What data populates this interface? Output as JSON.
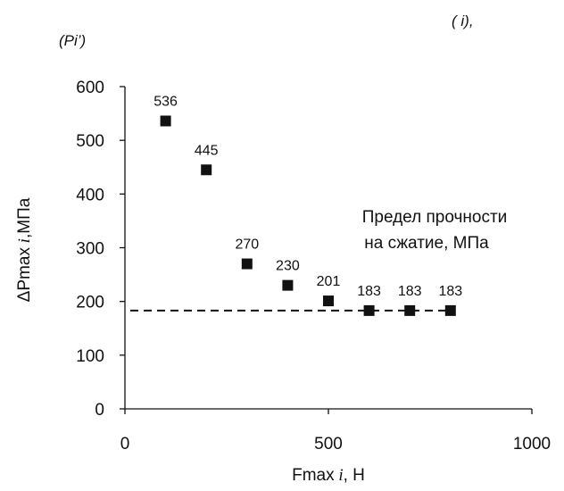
{
  "header_notes": {
    "right": "( i),",
    "left": "(Pi’)"
  },
  "chart_data": {
    "type": "scatter",
    "xlabel": "Fmax",
    "xlabel_sub": "i",
    "xlabel_unit": ", Н",
    "ylabel": "ΔPmax",
    "ylabel_sub": "i",
    "ylabel_unit": ",МПа",
    "xlim": [
      0,
      1000
    ],
    "ylim": [
      0,
      600
    ],
    "x_ticks": [
      0,
      500,
      1000
    ],
    "y_ticks": [
      0,
      100,
      200,
      300,
      400,
      500,
      600
    ],
    "grid": false,
    "marker": "square",
    "series": [
      {
        "points": [
          {
            "x": 100,
            "y": 536,
            "label": "536"
          },
          {
            "x": 200,
            "y": 445,
            "label": "445"
          },
          {
            "x": 300,
            "y": 270,
            "label": "270"
          },
          {
            "x": 400,
            "y": 230,
            "label": "230"
          },
          {
            "x": 500,
            "y": 201,
            "label": "201"
          },
          {
            "x": 600,
            "y": 183,
            "label": "183"
          },
          {
            "x": 700,
            "y": 183,
            "label": "183"
          },
          {
            "x": 800,
            "y": 183,
            "label": "183"
          }
        ]
      }
    ],
    "reference_line": {
      "y": 183,
      "x_range": [
        0,
        800
      ],
      "style": "dashed",
      "annotation": [
        "Предел прочности",
        "на сжатие, МПа"
      ]
    },
    "colors": {
      "marker": "#111111",
      "axis": "#111111"
    }
  }
}
